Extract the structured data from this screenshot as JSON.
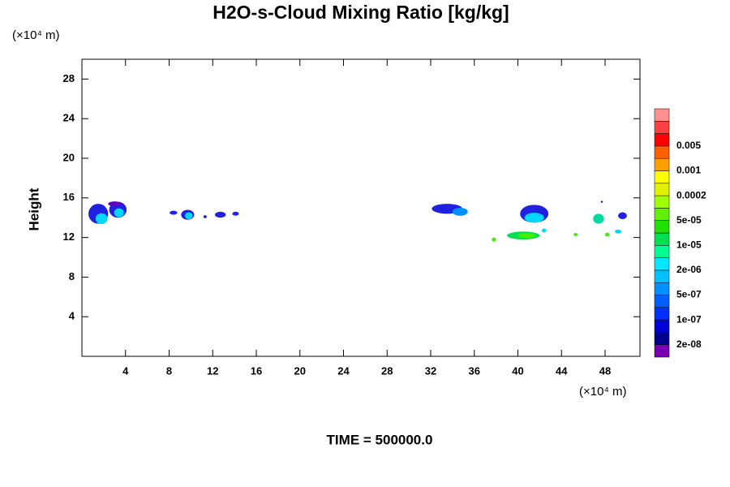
{
  "chart_data": {
    "type": "contour",
    "title": "H2O-s-Cloud Mixing Ratio [kg/kg]",
    "y_label": "Height",
    "x_units": "(×10⁴ m)",
    "y_units": "(×10⁴ m)",
    "footer": "TIME = 500000.0",
    "xlim": [
      0,
      51.2
    ],
    "xticks": [
      4,
      8,
      12,
      16,
      20,
      24,
      28,
      32,
      36,
      40,
      44,
      48
    ],
    "ylim": [
      0,
      30
    ],
    "yticks": [
      4,
      8,
      12,
      16,
      20,
      24,
      28
    ],
    "colorbar": {
      "colors": [
        "#7800b0",
        "#000090",
        "#0000d8",
        "#0030ff",
        "#0060ff",
        "#0090ff",
        "#00c0ff",
        "#00e8ff",
        "#00ff90",
        "#00e050",
        "#20e000",
        "#60f000",
        "#a0ff00",
        "#e0f000",
        "#ffff00",
        "#ffa000",
        "#ff6000",
        "#ff0000",
        "#ff4040",
        "#ff9090"
      ],
      "labels": [
        "2e-08",
        "1e-07",
        "5e-07",
        "2e-06",
        "1e-05",
        "5e-05",
        "0.0002",
        "0.001",
        "0.005"
      ]
    },
    "features": [
      {
        "x": 1.5,
        "y": 14.4,
        "rx": 0.9,
        "ry": 1.0,
        "color": "#2020e0"
      },
      {
        "x": 1.8,
        "y": 13.9,
        "rx": 0.55,
        "ry": 0.55,
        "color": "#00d8ff"
      },
      {
        "x": 3.3,
        "y": 14.8,
        "rx": 0.8,
        "ry": 0.8,
        "color": "#2020e0"
      },
      {
        "x": 3.0,
        "y": 15.4,
        "rx": 0.6,
        "ry": 0.25,
        "color": "#6000c0"
      },
      {
        "x": 3.4,
        "y": 14.5,
        "rx": 0.45,
        "ry": 0.45,
        "color": "#00d8ff"
      },
      {
        "x": 8.4,
        "y": 14.5,
        "rx": 0.35,
        "ry": 0.2,
        "color": "#2020e0"
      },
      {
        "x": 9.7,
        "y": 14.3,
        "rx": 0.6,
        "ry": 0.5,
        "color": "#2020e0"
      },
      {
        "x": 9.8,
        "y": 14.2,
        "rx": 0.35,
        "ry": 0.35,
        "color": "#00d8ff"
      },
      {
        "x": 11.3,
        "y": 14.1,
        "rx": 0.15,
        "ry": 0.15,
        "color": "#2020e0"
      },
      {
        "x": 12.7,
        "y": 14.3,
        "rx": 0.5,
        "ry": 0.3,
        "color": "#2020e0"
      },
      {
        "x": 14.1,
        "y": 14.4,
        "rx": 0.3,
        "ry": 0.2,
        "color": "#2020e0"
      },
      {
        "x": 33.5,
        "y": 14.9,
        "rx": 1.4,
        "ry": 0.5,
        "color": "#2020e0"
      },
      {
        "x": 34.7,
        "y": 14.6,
        "rx": 0.7,
        "ry": 0.4,
        "color": "#0090ff"
      },
      {
        "x": 41.5,
        "y": 14.4,
        "rx": 1.3,
        "ry": 0.9,
        "color": "#2020e0"
      },
      {
        "x": 41.5,
        "y": 14.0,
        "rx": 0.9,
        "ry": 0.5,
        "color": "#00d8ff"
      },
      {
        "x": 40.5,
        "y": 12.2,
        "rx": 1.5,
        "ry": 0.4,
        "color": "#00e050"
      },
      {
        "x": 40.8,
        "y": 12.2,
        "rx": 0.8,
        "ry": 0.25,
        "color": "#40f000"
      },
      {
        "x": 37.8,
        "y": 11.8,
        "rx": 0.2,
        "ry": 0.2,
        "color": "#40f000"
      },
      {
        "x": 42.4,
        "y": 12.7,
        "rx": 0.2,
        "ry": 0.2,
        "color": "#00d8ff"
      },
      {
        "x": 45.3,
        "y": 12.3,
        "rx": 0.2,
        "ry": 0.15,
        "color": "#40f000"
      },
      {
        "x": 47.4,
        "y": 13.9,
        "rx": 0.5,
        "ry": 0.5,
        "color": "#00d8a0"
      },
      {
        "x": 49.6,
        "y": 14.2,
        "rx": 0.4,
        "ry": 0.35,
        "color": "#2020e0"
      },
      {
        "x": 48.2,
        "y": 12.3,
        "rx": 0.2,
        "ry": 0.2,
        "color": "#40f000"
      },
      {
        "x": 49.2,
        "y": 12.6,
        "rx": 0.3,
        "ry": 0.2,
        "color": "#00d8ff"
      },
      {
        "x": 47.7,
        "y": 15.6,
        "rx": 0.1,
        "ry": 0.1,
        "color": "#6000c0"
      }
    ]
  }
}
